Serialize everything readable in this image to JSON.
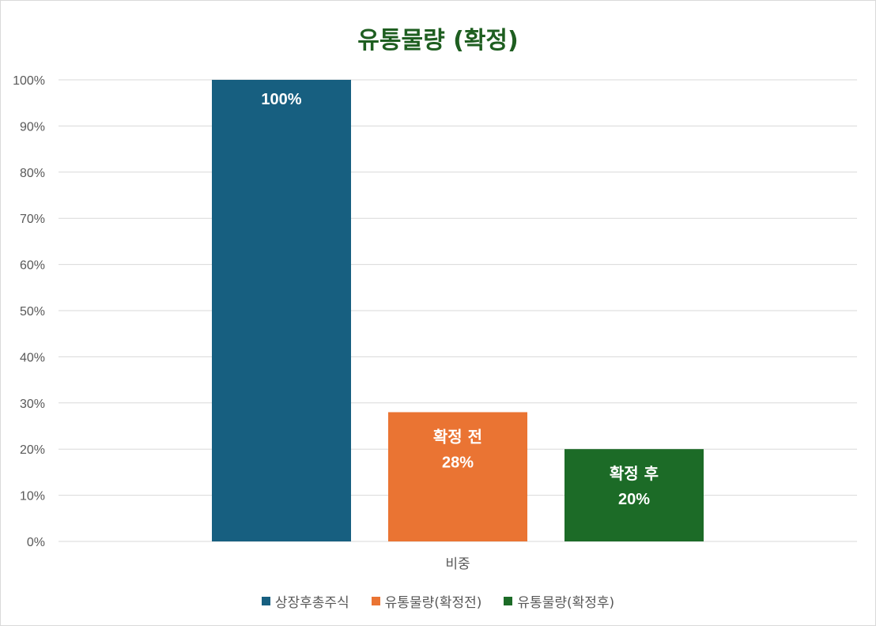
{
  "chart_data": {
    "type": "bar",
    "title": "유통물량 (확정)",
    "categories": [
      "비중"
    ],
    "ylim": [
      0,
      1
    ],
    "yticks": [
      0,
      0.1,
      0.2,
      0.3,
      0.4,
      0.5,
      0.6,
      0.7,
      0.8,
      0.9,
      1.0
    ],
    "ytick_labels": [
      "0%",
      "10%",
      "20%",
      "30%",
      "40%",
      "50%",
      "60%",
      "70%",
      "80%",
      "90%",
      "100%"
    ],
    "grid": true,
    "legend_position": "bottom",
    "series": [
      {
        "name": "상장후총주식",
        "values": [
          1.0
        ],
        "color": "#175f80",
        "data_label": "",
        "value_label": "100%"
      },
      {
        "name": "유통물량(확정전)",
        "values": [
          0.28
        ],
        "color": "#ea7433",
        "data_label": "확정 전",
        "value_label": "28%"
      },
      {
        "name": "유통물량(확정후)",
        "values": [
          0.2
        ],
        "color": "#1c6b27",
        "data_label": "확정 후",
        "value_label": "20%"
      }
    ]
  }
}
